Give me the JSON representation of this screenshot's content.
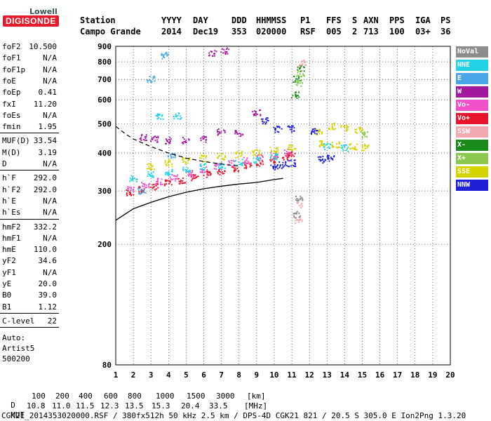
{
  "logo": {
    "top": "Lowell",
    "main": "DIGISONDE"
  },
  "header": {
    "labels": [
      "Station",
      "YYYY",
      "DAY",
      "DDD",
      "HHMMSS",
      "P1",
      "FFS",
      "S",
      "AXN",
      "PPS",
      "IGA",
      "PS"
    ],
    "values": [
      "Campo Grande",
      "2014",
      "Dec19",
      "353",
      "020000",
      "RSF",
      "005",
      "2",
      "713",
      "100",
      "03+",
      "36"
    ]
  },
  "params": {
    "group1": [
      {
        "key": "foF2",
        "value": "10.500"
      },
      {
        "key": "foF1",
        "value": "N/A"
      },
      {
        "key": "foF1p",
        "value": "N/A"
      },
      {
        "key": "foE",
        "value": "N/A"
      },
      {
        "key": "foEp",
        "value": "0.41"
      },
      {
        "key": "fxI",
        "value": "11.20"
      },
      {
        "key": "foEs",
        "value": "N/A"
      },
      {
        "key": "fmin",
        "value": "1.95"
      }
    ],
    "group2": [
      {
        "key": "MUF(D)",
        "value": "33.54"
      },
      {
        "key": "M(D)",
        "value": "3.19"
      },
      {
        "key": "D",
        "value": "N/A"
      }
    ],
    "group3": [
      {
        "key": "h`F",
        "value": "292.0"
      },
      {
        "key": "h`F2",
        "value": "292.0"
      },
      {
        "key": "h`E",
        "value": "N/A"
      },
      {
        "key": "h`Es",
        "value": "N/A"
      }
    ],
    "group4": [
      {
        "key": "hmF2",
        "value": "332.2"
      },
      {
        "key": "hmF1",
        "value": "N/A"
      },
      {
        "key": "hmE",
        "value": "110.0"
      },
      {
        "key": "yF2",
        "value": "34.6"
      },
      {
        "key": "yF1",
        "value": "N/A"
      },
      {
        "key": "yE",
        "value": "20.0"
      },
      {
        "key": "B0",
        "value": "39.0"
      },
      {
        "key": "B1",
        "value": "1.12"
      }
    ],
    "group5": [
      {
        "key": "C-level",
        "value": "22"
      }
    ],
    "auto": [
      "Auto:",
      "Artist5",
      "500200"
    ]
  },
  "legend": [
    {
      "label": "NoVal",
      "color": "#8c8c8c"
    },
    {
      "label": "NNE",
      "color": "#22d3e8"
    },
    {
      "label": "E",
      "color": "#4aa6e6"
    },
    {
      "label": "W",
      "color": "#a3199e"
    },
    {
      "label": "Vo-",
      "color": "#f050c8"
    },
    {
      "label": "Vo+",
      "color": "#e8142c"
    },
    {
      "label": "SSW",
      "color": "#f4a9b0"
    },
    {
      "label": "X-",
      "color": "#1a8a1a"
    },
    {
      "label": "X+",
      "color": "#8cc850"
    },
    {
      "label": "SSE",
      "color": "#d4d400"
    },
    {
      "label": "NNW",
      "color": "#2020d8"
    }
  ],
  "footer": {
    "d_label": "D",
    "d_values": [
      "100",
      "200",
      "400",
      "600",
      "800",
      "1000",
      "1500",
      "3000"
    ],
    "d_unit": "[km]",
    "muf_label": "MUF",
    "muf_values": [
      "10.8",
      "11.0",
      "11.5",
      "12.3",
      "13.5",
      "15.3",
      "20.4",
      "33.5"
    ],
    "muf_unit": "[MHz]",
    "file_line": "CGK21_2014353020000.RSF / 380fx512h 50 kHz 2.5 km / DPS-4D CGK21 821 / 20.5 S 305.0 E Ion2Png 1.3.20"
  },
  "chart_data": {
    "type": "scatter",
    "xlim": [
      1,
      20
    ],
    "ylim": [
      80,
      900
    ],
    "xticks": [
      1,
      2,
      3,
      4,
      5,
      6,
      7,
      8,
      9,
      10,
      11,
      12,
      13,
      14,
      15,
      16,
      17,
      18,
      19,
      20
    ],
    "yticks": [
      80,
      200,
      300,
      400,
      500,
      600,
      700,
      800,
      900
    ],
    "grid": true,
    "y_scale": "log",
    "profile_curve": {
      "color": "#000000",
      "x": [
        1.0,
        2.0,
        3.0,
        4.0,
        5.0,
        6.0,
        7.0,
        8.0,
        9.0,
        10.0,
        10.5
      ],
      "y": [
        240,
        262,
        275,
        287,
        297,
        305,
        311,
        316,
        320,
        327,
        330
      ]
    },
    "dashed_curve": {
      "color": "#000000",
      "x": [
        1.0,
        1.5,
        2.0,
        3.0,
        4.0,
        5.0,
        6.0,
        7.0,
        8.0
      ],
      "y": [
        490,
        465,
        445,
        420,
        400,
        385,
        375,
        368,
        362
      ]
    },
    "series": [
      {
        "name": "Vo+",
        "color": "#e8142c",
        "points": [
          [
            1.8,
            296
          ],
          [
            2.5,
            302
          ],
          [
            3.2,
            310
          ],
          [
            4.0,
            318
          ],
          [
            4.8,
            325
          ],
          [
            5.5,
            332
          ],
          [
            6.2,
            340
          ],
          [
            7.0,
            348
          ],
          [
            7.8,
            356
          ],
          [
            8.5,
            362
          ],
          [
            9.2,
            370
          ],
          [
            10.0,
            380
          ],
          [
            10.7,
            390
          ],
          [
            11.0,
            395
          ]
        ]
      },
      {
        "name": "Vo-",
        "color": "#f050c8",
        "points": [
          [
            1.9,
            305
          ],
          [
            2.7,
            312
          ],
          [
            3.5,
            322
          ],
          [
            4.3,
            332
          ],
          [
            5.2,
            342
          ],
          [
            6.0,
            352
          ],
          [
            6.8,
            362
          ],
          [
            7.6,
            370
          ],
          [
            8.4,
            378
          ],
          [
            9.2,
            386
          ],
          [
            10.0,
            395
          ],
          [
            10.8,
            402
          ]
        ]
      },
      {
        "name": "SSE",
        "color": "#d4d400",
        "points": [
          [
            3.0,
            360
          ],
          [
            4.0,
            370
          ],
          [
            5.0,
            378
          ],
          [
            6.0,
            384
          ],
          [
            7.0,
            390
          ],
          [
            8.0,
            396
          ],
          [
            9.0,
            402
          ],
          [
            10.0,
            410
          ],
          [
            11.0,
            418
          ],
          [
            12.5,
            470
          ],
          [
            13.3,
            490
          ],
          [
            14.0,
            485
          ],
          [
            14.8,
            475
          ],
          [
            12.8,
            430
          ],
          [
            13.5,
            425
          ],
          [
            14.5,
            420
          ],
          [
            15.2,
            418
          ]
        ]
      },
      {
        "name": "NNE",
        "color": "#22d3e8",
        "points": [
          [
            2.0,
            330
          ],
          [
            3.0,
            338
          ],
          [
            4.0,
            345
          ],
          [
            5.0,
            352
          ],
          [
            6.0,
            360
          ],
          [
            7.0,
            365
          ],
          [
            8.0,
            372
          ],
          [
            9.0,
            380
          ],
          [
            10.0,
            388
          ],
          [
            3.5,
            530
          ],
          [
            4.5,
            530
          ],
          [
            13.0,
            420
          ],
          [
            14.0,
            415
          ]
        ]
      },
      {
        "name": "W",
        "color": "#a3199e",
        "points": [
          [
            2.6,
            450
          ],
          [
            3.2,
            445
          ],
          [
            4.0,
            440
          ],
          [
            5.0,
            440
          ],
          [
            6.0,
            445
          ],
          [
            7.0,
            470
          ],
          [
            8.0,
            465
          ],
          [
            9.0,
            545
          ],
          [
            7.2,
            870
          ],
          [
            6.5,
            850
          ]
        ]
      },
      {
        "name": "NNW",
        "color": "#2020d8",
        "points": [
          [
            10.0,
            360
          ],
          [
            10.5,
            365
          ],
          [
            11.0,
            370
          ],
          [
            9.5,
            510
          ],
          [
            10.2,
            480
          ],
          [
            11.0,
            480
          ],
          [
            12.7,
            380
          ],
          [
            13.2,
            385
          ],
          [
            12.3,
            470
          ]
        ]
      },
      {
        "name": "X-",
        "color": "#1a8a1a",
        "points": [
          [
            11.2,
            620
          ],
          [
            11.3,
            700
          ],
          [
            11.5,
            760
          ]
        ]
      },
      {
        "name": "X+",
        "color": "#8cc850",
        "points": [
          [
            11.4,
            680
          ],
          [
            11.5,
            730
          ],
          [
            15.1,
            460
          ]
        ]
      },
      {
        "name": "SSW",
        "color": "#f4a9b0",
        "points": [
          [
            11.4,
            240
          ],
          [
            11.5,
            270
          ],
          [
            11.6,
            790
          ]
        ]
      },
      {
        "name": "E",
        "color": "#4aa6e6",
        "points": [
          [
            3.0,
            700
          ],
          [
            3.8,
            840
          ],
          [
            2.5,
            300
          ],
          [
            4.2,
            390
          ]
        ]
      },
      {
        "name": "NoVal",
        "color": "#8c8c8c",
        "points": [
          [
            11.3,
            250
          ],
          [
            11.4,
            285
          ]
        ]
      }
    ]
  }
}
